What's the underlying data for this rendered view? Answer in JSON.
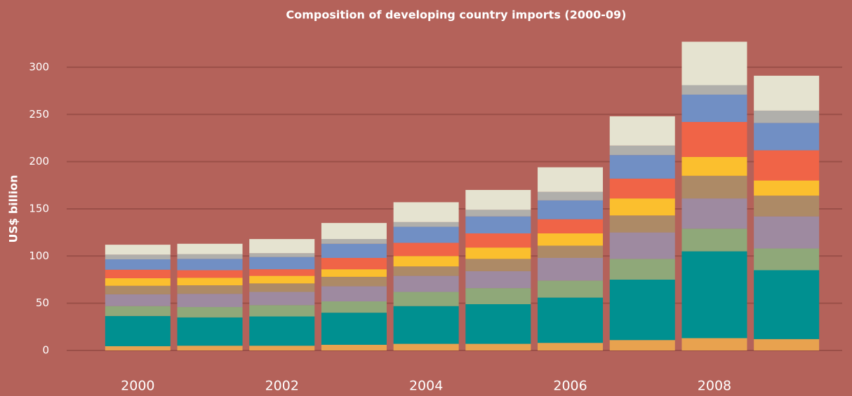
{
  "chart_data": {
    "type": "stacked_bar",
    "title": "Composition of developing country imports (2000-09)",
    "y_label": "US$ billion",
    "categories": [
      "2000",
      null,
      "2002",
      null,
      "2004",
      null,
      "2006",
      null,
      "2008",
      null
    ],
    "series": [
      {
        "color": "#e8a24f",
        "values": [
          4.5,
          5,
          5,
          6,
          7,
          7,
          8,
          11,
          13,
          12
        ]
      },
      {
        "color": "#009090",
        "values": [
          32,
          30,
          31,
          34,
          40,
          42,
          48,
          64,
          92,
          73
        ]
      },
      {
        "color": "#8fa879",
        "values": [
          10.5,
          11,
          12,
          12,
          15,
          17,
          18,
          22,
          24,
          23
        ]
      },
      {
        "color": "#9e8aa0",
        "values": [
          12.5,
          14,
          14,
          16,
          17,
          18,
          24,
          28,
          32,
          34
        ]
      },
      {
        "color": "#ad8a66",
        "values": [
          9,
          9,
          9,
          10,
          10,
          13,
          13,
          18,
          24,
          22
        ]
      },
      {
        "color": "#fbbf2e",
        "values": [
          8,
          8,
          8,
          8,
          11,
          12,
          13,
          18,
          20,
          16
        ]
      },
      {
        "color": "#f06447",
        "values": [
          9,
          8,
          7,
          12,
          14,
          15,
          15,
          21,
          37,
          32
        ]
      },
      {
        "color": "#718fc4",
        "values": [
          11,
          12,
          13,
          15,
          17,
          18,
          20,
          25,
          29,
          29
        ]
      },
      {
        "color": "#b0afab",
        "values": [
          5,
          5,
          4,
          5,
          5,
          7,
          9,
          10,
          10,
          13
        ]
      },
      {
        "color": "#e5e3d0",
        "values": [
          10.5,
          11,
          15,
          17,
          21,
          21,
          26,
          31,
          46,
          37
        ]
      }
    ],
    "ylim": [
      0,
      330
    ],
    "yticks": [
      0,
      50,
      100,
      150,
      200,
      250,
      300
    ],
    "grid": true
  }
}
